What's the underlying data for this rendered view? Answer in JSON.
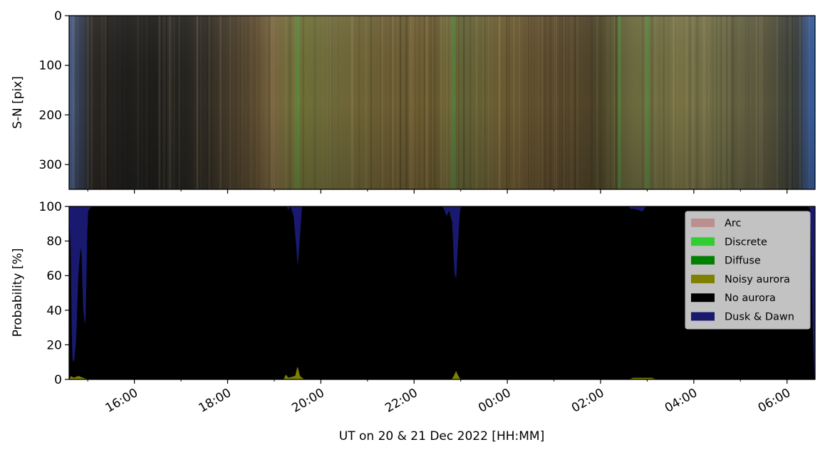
{
  "chart_data": [
    {
      "type": "heatmap",
      "panel": "keogram",
      "ylabel": "S-N [pix]",
      "y_ticks": [
        0,
        100,
        200,
        300
      ],
      "ylim": [
        350,
        0
      ],
      "x_hours": [
        14.6,
        30.6
      ],
      "color_stops": [
        {
          "h": 14.6,
          "color": "#4a5f92"
        },
        {
          "h": 14.75,
          "color": "#374560"
        },
        {
          "h": 15.1,
          "color": "#2a2622"
        },
        {
          "h": 15.8,
          "color": "#201f1d"
        },
        {
          "h": 16.6,
          "color": "#1e1e1c"
        },
        {
          "h": 17.3,
          "color": "#2a2722"
        },
        {
          "h": 17.9,
          "color": "#3e3628"
        },
        {
          "h": 18.5,
          "color": "#5a4a30"
        },
        {
          "h": 19.0,
          "color": "#77633d"
        },
        {
          "h": 19.5,
          "color": "#6d7037"
        },
        {
          "h": 20.2,
          "color": "#6f6a3a"
        },
        {
          "h": 21.3,
          "color": "#6b5d33"
        },
        {
          "h": 22.3,
          "color": "#6b5a30"
        },
        {
          "h": 23.0,
          "color": "#636336"
        },
        {
          "h": 24.0,
          "color": "#6b5a32"
        },
        {
          "h": 25.0,
          "color": "#5b4a2c"
        },
        {
          "h": 25.8,
          "color": "#4d4228"
        },
        {
          "h": 26.7,
          "color": "#6a6a3e"
        },
        {
          "h": 27.7,
          "color": "#767044"
        },
        {
          "h": 28.7,
          "color": "#6b6a46"
        },
        {
          "h": 29.6,
          "color": "#54513a"
        },
        {
          "h": 30.2,
          "color": "#3a3f3c"
        },
        {
          "h": 30.45,
          "color": "#3a5484"
        },
        {
          "h": 30.6,
          "color": "#3060b0"
        }
      ],
      "green_bands": [
        19.5,
        22.85,
        26.4,
        27.0
      ]
    },
    {
      "type": "area",
      "panel": "classification",
      "xlabel": "UT on 20 & 21 Dec 2022 [HH:MM]",
      "ylabel": "Probability [%]",
      "ylim": [
        0,
        100
      ],
      "y_ticks": [
        0,
        20,
        40,
        60,
        80,
        100
      ],
      "x_ticks": [
        {
          "h": 16,
          "label": "16:00"
        },
        {
          "h": 18,
          "label": "18:00"
        },
        {
          "h": 20,
          "label": "20:00"
        },
        {
          "h": 22,
          "label": "22:00"
        },
        {
          "h": 24,
          "label": "00:00"
        },
        {
          "h": 26,
          "label": "02:00"
        },
        {
          "h": 28,
          "label": "04:00"
        },
        {
          "h": 30,
          "label": "06:00"
        }
      ],
      "minor_ticks": [
        15,
        17,
        19,
        21,
        23,
        25,
        27,
        29
      ],
      "legend_position": "upper right",
      "legend": [
        {
          "label": "Arc",
          "color": "#bc8f8f"
        },
        {
          "label": "Discrete",
          "color": "#32cd32"
        },
        {
          "label": "Diffuse",
          "color": "#008000"
        },
        {
          "label": "Noisy aurora",
          "color": "#808000"
        },
        {
          "label": "No aurora",
          "color": "#000000"
        },
        {
          "label": "Dusk & Dawn",
          "color": "#191970"
        }
      ],
      "series": [
        {
          "name": "Noisy aurora",
          "color": "#808000",
          "points": [
            [
              14.6,
              0
            ],
            [
              14.64,
              2
            ],
            [
              14.7,
              1
            ],
            [
              14.8,
              2
            ],
            [
              14.9,
              1
            ],
            [
              15.0,
              0
            ],
            [
              19.2,
              0
            ],
            [
              19.25,
              3
            ],
            [
              19.3,
              1
            ],
            [
              19.45,
              2
            ],
            [
              19.5,
              8
            ],
            [
              19.55,
              2
            ],
            [
              19.65,
              0
            ],
            [
              22.8,
              0
            ],
            [
              22.85,
              2
            ],
            [
              22.9,
              5
            ],
            [
              22.95,
              2
            ],
            [
              23.0,
              0
            ],
            [
              26.6,
              0
            ],
            [
              26.7,
              1
            ],
            [
              26.9,
              1
            ],
            [
              27.1,
              1
            ],
            [
              27.2,
              0
            ],
            [
              30.6,
              0
            ]
          ]
        },
        {
          "name": "No aurora",
          "color": "#000000",
          "points": [
            [
              14.6,
              97
            ],
            [
              14.64,
              70
            ],
            [
              14.66,
              12
            ],
            [
              14.7,
              8
            ],
            [
              14.75,
              20
            ],
            [
              14.8,
              60
            ],
            [
              14.86,
              78
            ],
            [
              14.9,
              40
            ],
            [
              14.95,
              28
            ],
            [
              15.0,
              97
            ],
            [
              15.05,
              99
            ],
            [
              15.1,
              100
            ],
            [
              19.2,
              100
            ],
            [
              19.25,
              98
            ],
            [
              19.3,
              97
            ],
            [
              19.35,
              99
            ],
            [
              19.42,
              92
            ],
            [
              19.48,
              70
            ],
            [
              19.5,
              55
            ],
            [
              19.55,
              80
            ],
            [
              19.6,
              100
            ],
            [
              22.6,
              100
            ],
            [
              22.65,
              98
            ],
            [
              22.7,
              94
            ],
            [
              22.75,
              98
            ],
            [
              22.82,
              90
            ],
            [
              22.86,
              60
            ],
            [
              22.9,
              52
            ],
            [
              22.94,
              75
            ],
            [
              22.98,
              95
            ],
            [
              23.0,
              100
            ],
            [
              26.6,
              100
            ],
            [
              26.65,
              98
            ],
            [
              26.8,
              97
            ],
            [
              26.9,
              96
            ],
            [
              26.95,
              98
            ],
            [
              27.0,
              100
            ],
            [
              30.45,
              100
            ],
            [
              30.5,
              98
            ],
            [
              30.55,
              30
            ],
            [
              30.58,
              5
            ],
            [
              30.6,
              1
            ]
          ]
        }
      ]
    }
  ]
}
